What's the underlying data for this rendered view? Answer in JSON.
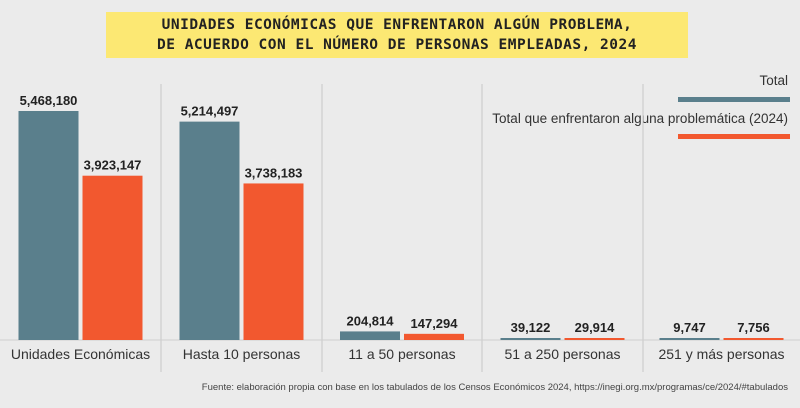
{
  "chart_data": {
    "type": "bar",
    "title": [
      "UNIDADES ECONÓMICAS QUE ENFRENTARON ALGÚN PROBLEMA,",
      "DE ACUERDO CON EL NÚMERO DE PERSONAS EMPLEADAS, 2024"
    ],
    "categories": [
      "Unidades Económicas",
      "Hasta 10 personas",
      "11 a 50 personas",
      "51 a 250 personas",
      "251 y más personas"
    ],
    "series": [
      {
        "name": "Total",
        "color": "#5a7f8c",
        "values": [
          5468180,
          5214497,
          204814,
          39122,
          9747
        ],
        "labels": [
          "5,468,180",
          "5,214,497",
          "204,814",
          "39,122",
          "9,747"
        ]
      },
      {
        "name": "Total que enfrentaron alguna problemática (2024)",
        "color": "#f2582f",
        "values": [
          3923147,
          3738183,
          147294,
          29914,
          7756
        ],
        "labels": [
          "3,923,147",
          "3,738,183",
          "147,294",
          "29,914",
          "7,756"
        ]
      }
    ],
    "ylim": [
      0,
      5468180
    ],
    "legend_position": "top-right",
    "source": "Fuente: elaboración propia con base en los tabulados de los Censos Económicos 2024, https://inegi.org.mx/programas/ce/2024/#tabulados"
  }
}
